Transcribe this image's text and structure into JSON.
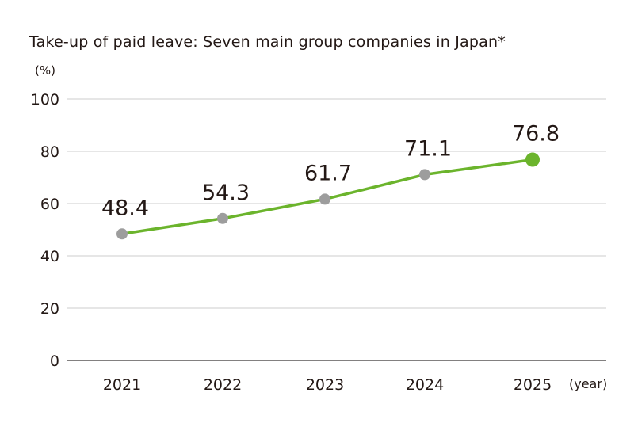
{
  "title": "Take-up of paid leave: Seven main group companies in Japan*",
  "y_unit": "(%)",
  "x_unit": "(year)",
  "colors": {
    "line": "#6bb42c",
    "point": "#9d9d9d",
    "highlight_point": "#6bb42c",
    "grid": "#cccccc",
    "axis": "#595757",
    "text": "#231815"
  },
  "chart_data": {
    "type": "line",
    "title": "Take-up of paid leave: Seven main group companies in Japan*",
    "xlabel": "(year)",
    "ylabel": "(%)",
    "categories": [
      "2021",
      "2022",
      "2023",
      "2024",
      "2025"
    ],
    "series": [
      {
        "values": [
          48.4,
          54.3,
          61.7,
          71.1,
          76.8
        ],
        "labels": [
          "48.4",
          "54.3",
          "61.7",
          "71.1",
          "76.8"
        ]
      }
    ],
    "ylim": [
      0,
      100
    ],
    "yticks": [
      0,
      20,
      40,
      60,
      80,
      100
    ],
    "highlight_last_point": true,
    "grid": true,
    "legend": "none"
  }
}
